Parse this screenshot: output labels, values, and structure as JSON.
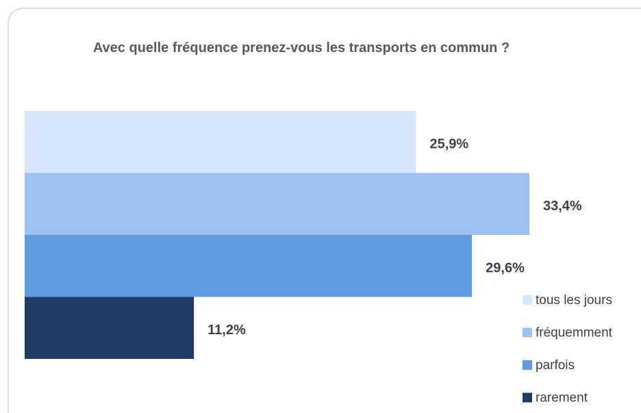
{
  "chart_data": {
    "type": "bar",
    "orientation": "horizontal",
    "title": "Avec quelle fréquence prenez-vous les transports en commun ?",
    "series": [
      {
        "name": "tous les jours",
        "color": "#d6e6fb",
        "values": [
          25.9
        ],
        "value_labels": [
          "25,9%"
        ]
      },
      {
        "name": "fréquemment",
        "color": "#9cc2f2",
        "values": [
          33.4
        ],
        "value_labels": [
          "33,4%"
        ]
      },
      {
        "name": "parfois",
        "color": "#5e9be3",
        "values": [
          29.6
        ],
        "value_labels": [
          "29,6%"
        ]
      },
      {
        "name": "rarement",
        "color": "#1f3b64",
        "values": [
          11.2
        ],
        "value_labels": [
          "11,2%"
        ]
      }
    ],
    "legend": "right"
  }
}
